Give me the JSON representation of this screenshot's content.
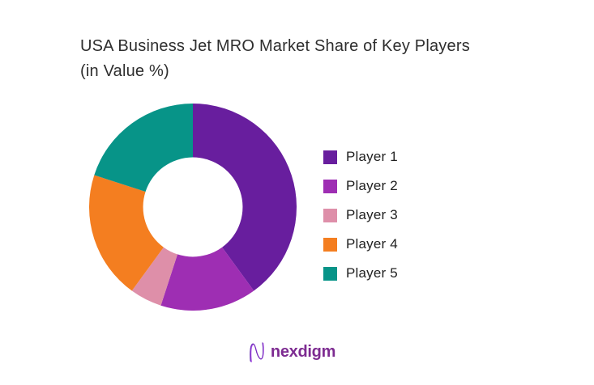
{
  "header": {
    "title_line1": "USA Business Jet MRO Market Share of Key Players",
    "title_line2": "(in Value %)",
    "title_color": "#2e2e2e"
  },
  "chart_data": {
    "type": "pie",
    "donut": true,
    "inner_radius_ratio": 0.48,
    "start_angle_deg": 0,
    "direction": "clockwise",
    "unit": "percent",
    "title": "USA Business Jet MRO Market Share of Key Players (in Value %)",
    "legend_position": "right",
    "grid": false,
    "series": [
      {
        "name": "Player 1",
        "value": 40,
        "color": "#681e9e"
      },
      {
        "name": "Player 2",
        "value": 15,
        "color": "#9e2eb3"
      },
      {
        "name": "Player 3",
        "value": 5,
        "color": "#de8fa9"
      },
      {
        "name": "Player 4",
        "value": 20,
        "color": "#f47e20"
      },
      {
        "name": "Player 5",
        "value": 20,
        "color": "#079488"
      }
    ]
  },
  "footer": {
    "logo_text": "nexdigm",
    "logo_color": "#7d2b91",
    "logo_icon": "nexdigm-wave-n-icon"
  }
}
